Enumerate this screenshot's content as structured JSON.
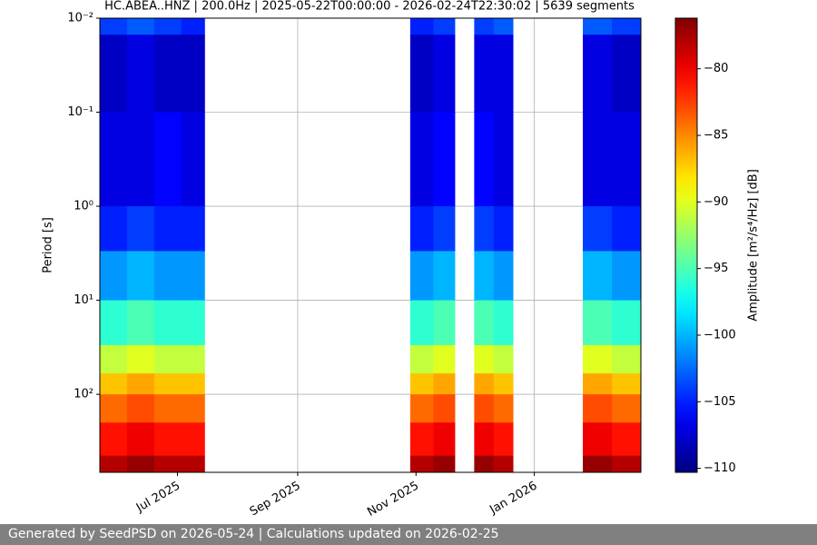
{
  "chart_data": {
    "type": "spectrogram",
    "title": "HC.ABEA..HNZ | 200.0Hz | 2025-05-22T00:00:00 - 2026-02-24T22:30:02 | 5639 segments",
    "y_label": "Period [s]",
    "colorbar_label": "Amplitude [m²/s⁴/Hz] [dB]",
    "colormap": "jet",
    "grid": true,
    "y_log": true,
    "y_inverted": true,
    "xlim": [
      "2025-05-22T00:00:00",
      "2026-02-24T22:30:02"
    ],
    "xticks": [
      {
        "value": "2025-07",
        "label": "Jul 2025"
      },
      {
        "value": "2025-09",
        "label": "Sep 2025"
      },
      {
        "value": "2025-11",
        "label": "Nov 2025"
      },
      {
        "value": "2026-01",
        "label": "Jan 2026"
      }
    ],
    "ylim": [
      0.01,
      676
    ],
    "yticks": [
      {
        "value": 0.01,
        "label": "10⁻²"
      },
      {
        "value": 0.1,
        "label": "10⁻¹"
      },
      {
        "value": 1,
        "label": "10⁰"
      },
      {
        "value": 10,
        "label": "10¹"
      },
      {
        "value": 100,
        "label": "10²"
      }
    ],
    "clim": [
      -110.3,
      -76.2
    ],
    "cticks": [
      {
        "value": -80,
        "label": "−80"
      },
      {
        "value": -85,
        "label": "−85"
      },
      {
        "value": -90,
        "label": "−90"
      },
      {
        "value": -95,
        "label": "−95"
      },
      {
        "value": -100,
        "label": "−100"
      },
      {
        "value": -105,
        "label": "−105"
      },
      {
        "value": -110,
        "label": "−110"
      }
    ],
    "x_edges": [
      "2025-05-22",
      "2025-06-05",
      "2025-06-19",
      "2025-07-03",
      "2025-07-15",
      "2025-10-29",
      "2025-11-10",
      "2025-11-21",
      "2025-12-01",
      "2025-12-11",
      "2025-12-21",
      "2026-01-26",
      "2026-02-10",
      "2026-02-24T22:30:02"
    ],
    "y_edges": [
      0.01,
      0.015,
      0.1,
      1,
      3,
      10,
      30,
      60,
      100,
      200,
      450,
      676
    ],
    "values": [
      [
        -104,
        -103,
        -104,
        -105,
        null,
        -105,
        -104,
        null,
        -104,
        -103,
        null,
        -103,
        -104
      ],
      [
        -108,
        -107,
        -108,
        -108,
        null,
        -108,
        -107,
        null,
        -107,
        -107,
        null,
        -107,
        -108
      ],
      [
        -107,
        -107,
        -106,
        -107,
        null,
        -107,
        -106,
        null,
        -106,
        -107,
        null,
        -107,
        -107
      ],
      [
        -105,
        -104,
        -105,
        -105,
        null,
        -105,
        -104,
        null,
        -104,
        -105,
        null,
        -104,
        -105
      ],
      [
        -101,
        -100,
        -101,
        -101,
        null,
        -101,
        -100,
        null,
        -100,
        -101,
        null,
        -100,
        -101
      ],
      [
        -96,
        -95,
        -96,
        -96,
        null,
        -96,
        -95,
        null,
        -95,
        -96,
        null,
        -95,
        -96
      ],
      [
        -91,
        -90,
        -91,
        -91,
        null,
        -91,
        -90,
        null,
        -90,
        -91,
        null,
        -90,
        -91
      ],
      [
        -87,
        -86,
        -87,
        -87,
        null,
        -87,
        -86,
        null,
        -86,
        -87,
        null,
        -86,
        -87
      ],
      [
        -84,
        -83,
        -84,
        -84,
        null,
        -84,
        -83,
        null,
        -83,
        -84,
        null,
        -83,
        -84
      ],
      [
        -81,
        -80,
        -81,
        -81,
        null,
        -81,
        -80,
        null,
        -80,
        -81,
        null,
        -80,
        -81
      ],
      [
        -78,
        -77,
        -78,
        -78,
        null,
        -78,
        -77,
        null,
        -77,
        -78,
        null,
        -77,
        -78
      ]
    ]
  },
  "footer": "Generated by SeedPSD on 2026-05-24 | Calculations updated on 2026-02-25"
}
